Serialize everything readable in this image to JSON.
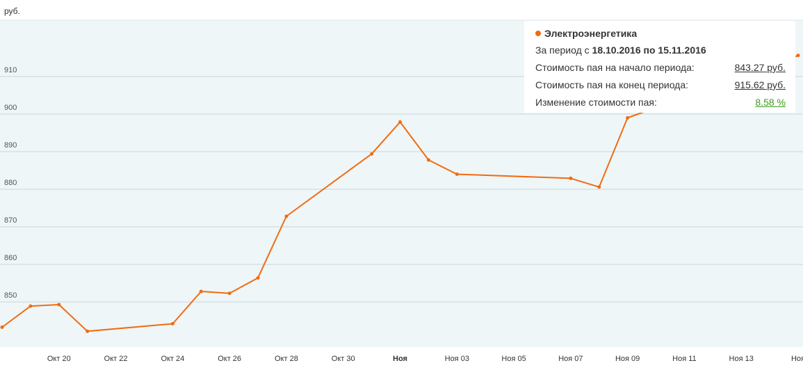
{
  "unit": "руб.",
  "tooltip": {
    "series_name": "Электроэнергетика",
    "period_prefix": "За период с ",
    "period_value": "18.10.2016 по 15.11.2016",
    "start_label": "Стоимость пая на начало периода:",
    "start_value": "843.27 руб.",
    "end_label": "Стоимость пая на конец периода:",
    "end_value": "915.62 руб.",
    "change_label": "Изменение стоимости пая:",
    "change_value": "8.58 %"
  },
  "colors": {
    "line": "#f26b10",
    "plot_background": "#eef6f8",
    "grid": "#c7d7df",
    "change_positive": "#3a9c1a"
  },
  "chart_data": {
    "type": "line",
    "title": "",
    "ylabel": "руб.",
    "xlabel": "",
    "ylim": [
      838,
      925
    ],
    "yticks": [
      850,
      860,
      870,
      880,
      890,
      900,
      910
    ],
    "grid": true,
    "x_range": [
      "2016-10-18",
      "2016-11-15"
    ],
    "xticks": [
      {
        "date": "2016-10-20",
        "label": "Окт 20",
        "bold": false
      },
      {
        "date": "2016-10-22",
        "label": "Окт 22",
        "bold": false
      },
      {
        "date": "2016-10-24",
        "label": "Окт 24",
        "bold": false
      },
      {
        "date": "2016-10-26",
        "label": "Окт 26",
        "bold": false
      },
      {
        "date": "2016-10-28",
        "label": "Окт 28",
        "bold": false
      },
      {
        "date": "2016-10-30",
        "label": "Окт 30",
        "bold": false
      },
      {
        "date": "2016-11-01",
        "label": "Ноя",
        "bold": true
      },
      {
        "date": "2016-11-03",
        "label": "Ноя 03",
        "bold": false
      },
      {
        "date": "2016-11-05",
        "label": "Ноя 05",
        "bold": false
      },
      {
        "date": "2016-11-07",
        "label": "Ноя 07",
        "bold": false
      },
      {
        "date": "2016-11-09",
        "label": "Ноя 09",
        "bold": false
      },
      {
        "date": "2016-11-11",
        "label": "Ноя 11",
        "bold": false
      },
      {
        "date": "2016-11-13",
        "label": "Ноя 13",
        "bold": false
      },
      {
        "date": "2016-11-15",
        "label": "Ноя",
        "bold": false
      }
    ],
    "series": [
      {
        "name": "Электроэнергетика",
        "points": [
          {
            "x": "2016-10-18",
            "y": 843.27
          },
          {
            "x": "2016-10-19",
            "y": 848.9
          },
          {
            "x": "2016-10-20",
            "y": 849.3
          },
          {
            "x": "2016-10-21",
            "y": 842.2
          },
          {
            "x": "2016-10-24",
            "y": 844.2
          },
          {
            "x": "2016-10-25",
            "y": 852.8
          },
          {
            "x": "2016-10-26",
            "y": 852.3
          },
          {
            "x": "2016-10-27",
            "y": 856.4
          },
          {
            "x": "2016-10-28",
            "y": 872.8
          },
          {
            "x": "2016-10-31",
            "y": 889.4
          },
          {
            "x": "2016-11-01",
            "y": 897.9
          },
          {
            "x": "2016-11-02",
            "y": 887.8
          },
          {
            "x": "2016-11-03",
            "y": 884.0
          },
          {
            "x": "2016-11-07",
            "y": 882.9
          },
          {
            "x": "2016-11-08",
            "y": 880.6
          },
          {
            "x": "2016-11-09",
            "y": 899.0
          },
          {
            "x": "2016-11-15",
            "y": 915.62
          }
        ]
      }
    ]
  }
}
